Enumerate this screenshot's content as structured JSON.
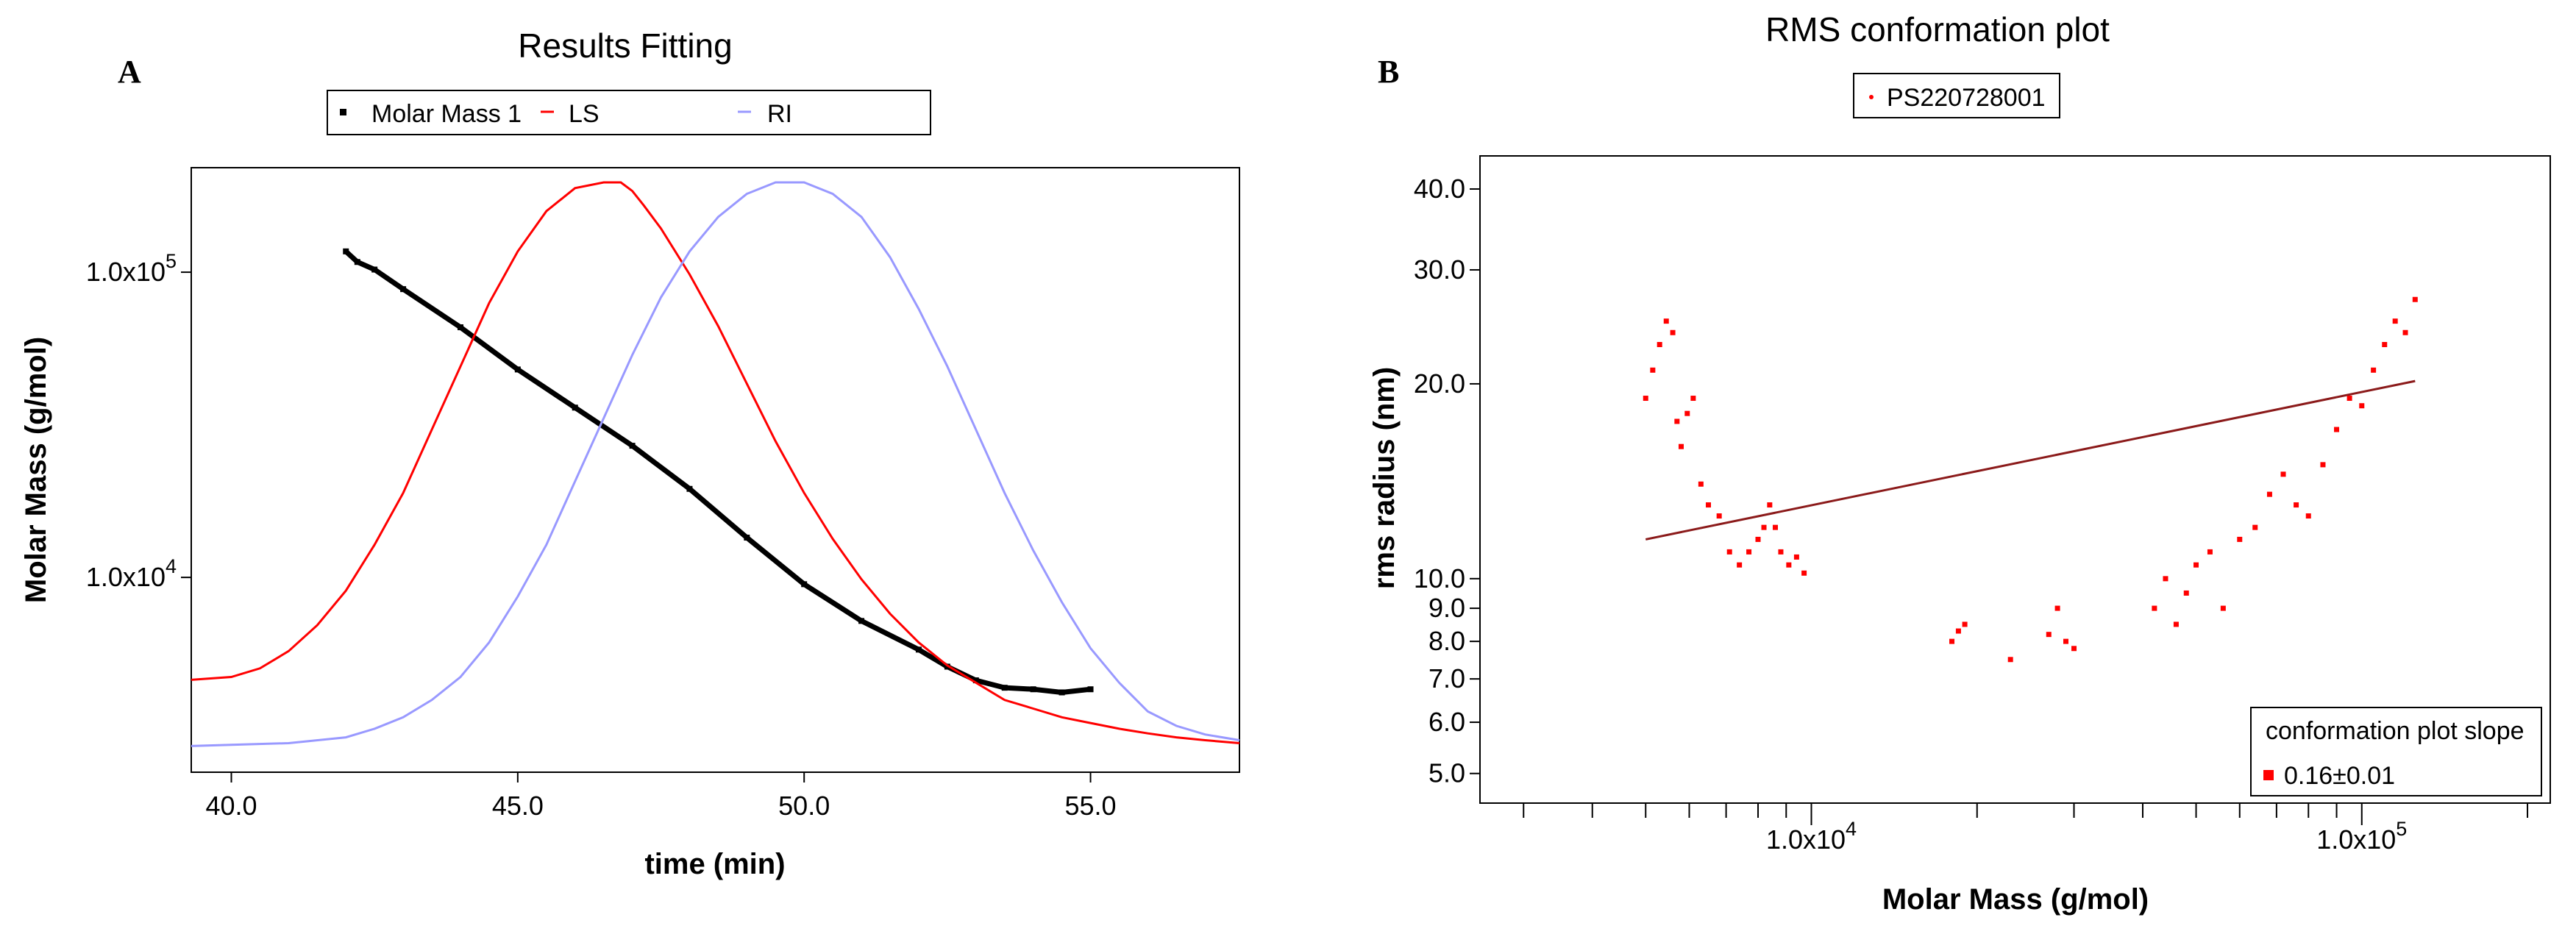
{
  "chart_data": [
    {
      "panel": "A",
      "type": "line",
      "title": "Results Fitting",
      "xlabel": "time (min)",
      "ylabel": "Molar Mass (g/mol)",
      "xlim": [
        39.3,
        57.6
      ],
      "xticks": [
        40.0,
        45.0,
        50.0,
        55.0
      ],
      "xtick_labels": [
        "40.0",
        "45.0",
        "50.0",
        "55.0"
      ],
      "yscale": "log",
      "ylim": [
        2300,
        220000
      ],
      "yticks": [
        10000,
        100000
      ],
      "ytick_labels": [
        {
          "base": "1.0x10",
          "exp": "4"
        },
        {
          "base": "1.0x10",
          "exp": "5"
        }
      ],
      "legend": {
        "placement": "top-center",
        "entries": [
          {
            "label": "Molar Mass 1",
            "color": "#000000",
            "marker": "square"
          },
          {
            "label": "LS",
            "color": "#ff0000",
            "marker": "line"
          },
          {
            "label": "RI",
            "color": "#9999ff",
            "marker": "line"
          }
        ]
      },
      "series": [
        {
          "name": "Molar Mass 1",
          "kind": "scatter",
          "color": "#000000",
          "axis": "log",
          "x": [
            42.0,
            42.2,
            42.5,
            43.0,
            44.0,
            45.0,
            46.0,
            47.0,
            48.0,
            49.0,
            50.0,
            51.0,
            52.0,
            52.5,
            53.0,
            53.5,
            54.0,
            54.5,
            55.0
          ],
          "y": [
            117000,
            108000,
            102000,
            88000,
            66000,
            48000,
            36000,
            27000,
            19500,
            13500,
            9500,
            7200,
            5800,
            5100,
            4600,
            4350,
            4300,
            4200,
            4300
          ]
        },
        {
          "name": "LS",
          "kind": "line",
          "color": "#ff0000",
          "axis": "relative",
          "x": [
            39.3,
            40.0,
            40.5,
            41.0,
            41.5,
            42.0,
            42.5,
            43.0,
            43.5,
            44.0,
            44.5,
            45.0,
            45.5,
            46.0,
            46.5,
            46.8,
            47.0,
            47.2,
            47.5,
            48.0,
            48.5,
            49.0,
            49.5,
            50.0,
            50.5,
            51.0,
            51.5,
            52.0,
            52.5,
            53.0,
            53.5,
            54.0,
            54.5,
            55.0,
            55.5,
            56.0,
            56.5,
            57.0,
            57.6
          ],
          "y": [
            0.135,
            0.14,
            0.155,
            0.185,
            0.23,
            0.29,
            0.37,
            0.46,
            0.57,
            0.68,
            0.79,
            0.88,
            0.95,
            0.99,
            1.0,
            1.0,
            0.985,
            0.96,
            0.92,
            0.84,
            0.75,
            0.65,
            0.55,
            0.46,
            0.38,
            0.31,
            0.25,
            0.2,
            0.16,
            0.13,
            0.1,
            0.085,
            0.07,
            0.06,
            0.05,
            0.042,
            0.035,
            0.03,
            0.025
          ]
        },
        {
          "name": "RI",
          "kind": "line",
          "color": "#9999ff",
          "axis": "relative",
          "x": [
            39.3,
            40.0,
            41.0,
            42.0,
            42.5,
            43.0,
            43.5,
            44.0,
            44.5,
            45.0,
            45.5,
            46.0,
            46.5,
            47.0,
            47.5,
            48.0,
            48.5,
            49.0,
            49.5,
            50.0,
            50.5,
            51.0,
            51.5,
            52.0,
            52.5,
            53.0,
            53.5,
            54.0,
            54.5,
            55.0,
            55.5,
            56.0,
            56.5,
            57.0,
            57.6
          ],
          "y": [
            0.02,
            0.022,
            0.025,
            0.035,
            0.05,
            0.07,
            0.1,
            0.14,
            0.2,
            0.28,
            0.37,
            0.48,
            0.59,
            0.7,
            0.8,
            0.88,
            0.94,
            0.98,
            1.0,
            1.0,
            0.98,
            0.94,
            0.87,
            0.78,
            0.68,
            0.57,
            0.46,
            0.36,
            0.27,
            0.19,
            0.13,
            0.08,
            0.055,
            0.04,
            0.03
          ]
        }
      ]
    },
    {
      "panel": "B",
      "type": "scatter",
      "title": "RMS conformation plot",
      "xlabel": "Molar Mass (g/mol)",
      "ylabel": "rms radius (nm)",
      "xscale": "log",
      "xlim": [
        2500,
        220000
      ],
      "xtick_labels": [
        {
          "value": 10000,
          "base": "1.0x10",
          "exp": "4"
        },
        {
          "value": 100000,
          "base": "1.0x10",
          "exp": "5"
        }
      ],
      "yscale": "log",
      "ylim": [
        4.5,
        45
      ],
      "yticks": [
        5.0,
        6.0,
        7.0,
        8.0,
        9.0,
        10.0,
        20.0,
        30.0,
        40.0
      ],
      "ytick_labels": [
        "5.0",
        "6.0",
        "7.0",
        "8.0",
        "9.0",
        "10.0",
        "20.0",
        "30.0",
        "40.0"
      ],
      "legend": {
        "placement": "top-center",
        "entries": [
          {
            "label": "PS220728001",
            "color": "#ff0000",
            "marker": "dot"
          }
        ]
      },
      "fit_legend": {
        "placement": "bottom-right",
        "title": "conformation plot slope",
        "entries": [
          {
            "label": "0.16±0.01",
            "color": "#ff0000",
            "marker": "square"
          }
        ]
      },
      "fit_line": {
        "color": "#8b1a1a",
        "x": [
          5000,
          125000
        ],
        "y": [
          11.5,
          20.2
        ],
        "slope": 0.16
      },
      "series": [
        {
          "name": "PS220728001",
          "color": "#ff0000",
          "x": [
            5000,
            5150,
            5300,
            5450,
            5600,
            5700,
            5800,
            5950,
            6100,
            6300,
            6500,
            6800,
            7100,
            7400,
            7700,
            8000,
            8200,
            8400,
            8600,
            8800,
            9100,
            9400,
            9700,
            18000,
            18500,
            19000,
            23000,
            27000,
            28000,
            29000,
            30000,
            42000,
            44000,
            46000,
            48000,
            50000,
            53000,
            56000,
            60000,
            64000,
            68000,
            72000,
            76000,
            80000,
            85000,
            90000,
            95000,
            100000,
            105000,
            110000,
            115000,
            120000,
            125000
          ],
          "y": [
            19.0,
            21.0,
            23.0,
            25.0,
            24.0,
            17.5,
            16.0,
            18.0,
            19.0,
            14.0,
            13.0,
            12.5,
            11.0,
            10.5,
            11.0,
            11.5,
            12.0,
            13.0,
            12.0,
            11.0,
            10.5,
            10.8,
            10.2,
            8.0,
            8.3,
            8.5,
            7.5,
            8.2,
            9.0,
            8.0,
            7.8,
            9.0,
            10.0,
            8.5,
            9.5,
            10.5,
            11.0,
            9.0,
            11.5,
            12.0,
            13.5,
            14.5,
            13.0,
            12.5,
            15.0,
            17.0,
            19.0,
            18.5,
            21.0,
            23.0,
            25.0,
            24.0,
            27.0
          ]
        }
      ]
    }
  ],
  "panel_labels": {
    "a": "A",
    "b": "B"
  }
}
